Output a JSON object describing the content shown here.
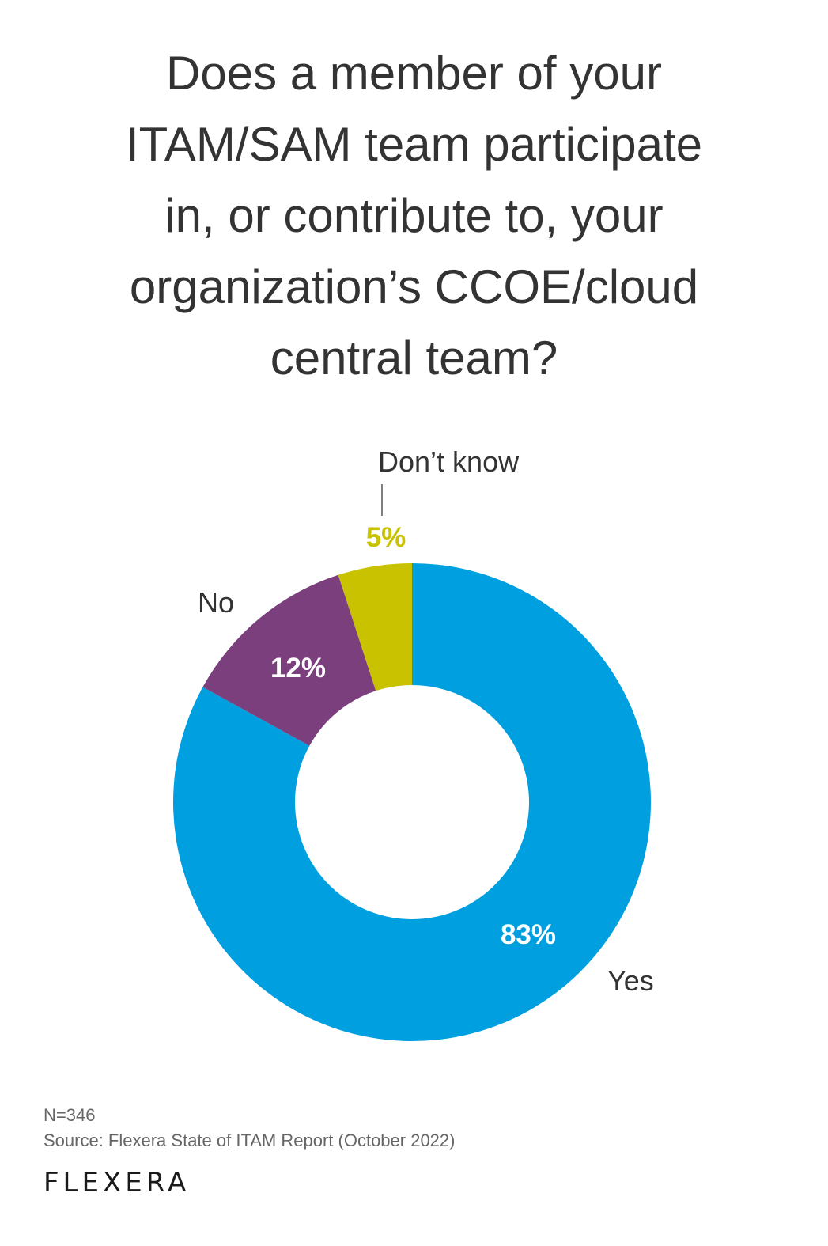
{
  "title_lines": [
    "Does a member of your",
    "ITAM/SAM team participate",
    "in, or contribute to, your",
    "organization’s CCOE/cloud",
    "central team?"
  ],
  "chart_data": {
    "type": "pie",
    "title": "Does a member of your ITAM/SAM team participate in, or contribute to, your organization’s CCOE/cloud central team?",
    "slices": [
      {
        "label": "Yes",
        "value": 83,
        "display": "83%",
        "color": "#009FDF",
        "text_color": "#ffffff"
      },
      {
        "label": "No",
        "value": 12,
        "display": "12%",
        "color": "#7B3F7D",
        "text_color": "#ffffff"
      },
      {
        "label": "Don’t know",
        "value": 5,
        "display": "5%",
        "color": "#C9C200",
        "text_color": "#C9C200"
      }
    ],
    "legend": "none"
  },
  "footer": {
    "n": "N=346",
    "source": "Source: Flexera State of ITAM Report (October 2022)"
  },
  "logo": "FLEXERA"
}
